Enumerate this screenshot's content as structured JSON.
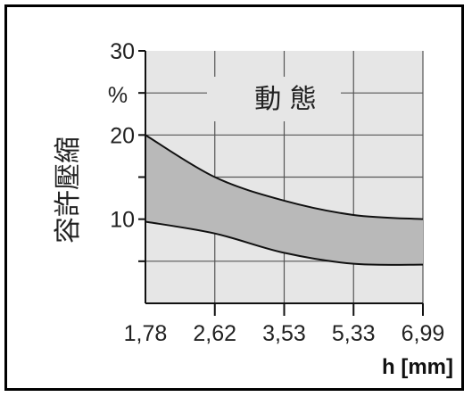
{
  "chart_data": {
    "type": "area",
    "title": "動 態",
    "ylabel": "容許壓縮",
    "yunit": "%",
    "xlabel": "h [mm]",
    "categories": [
      "1,78",
      "2,62",
      "3,53",
      "5,33",
      "6,99"
    ],
    "yticks": [
      10,
      20,
      30
    ],
    "ylim": [
      0,
      30
    ],
    "series": [
      {
        "values": [
          20,
          15,
          12.2,
          10.5,
          10
        ]
      },
      {
        "values": [
          9.7,
          8.3,
          6,
          4.7,
          4.6
        ]
      }
    ],
    "fill_color": "#b9b9b9",
    "plot_bg": "#e6e6e6",
    "grid": true
  }
}
